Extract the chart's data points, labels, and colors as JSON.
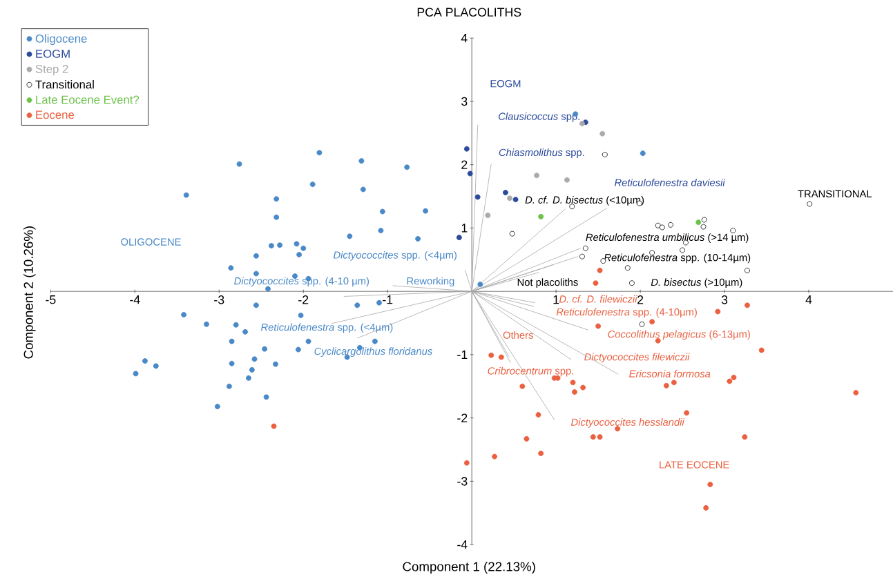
{
  "chart_data": {
    "type": "scatter",
    "title": "PCA PLACOLITHS",
    "xlabel": "Component 1 (22.13%)",
    "ylabel": "Component 2 (10.26%)",
    "xlim": [
      -5,
      5
    ],
    "ylim": [
      -4,
      4
    ],
    "xticks": [
      -5,
      -4,
      -3,
      -2,
      -1,
      1,
      2,
      3,
      4
    ],
    "yticks": [
      -4,
      -3,
      -2,
      -1,
      1,
      2,
      3,
      4
    ],
    "grid": false,
    "legend": "top left",
    "marker": "circle",
    "series": [
      {
        "name": "Oligocene",
        "color": "#4a89c8",
        "x": [
          -3.39,
          -2.76,
          -1.81,
          -1.31,
          -0.77,
          -2.32,
          -1.89,
          -1.29,
          -2.32,
          -1.06,
          -0.55,
          -1.45,
          -1.08,
          -0.64,
          -2.38,
          -2.28,
          -2.08,
          -2.0,
          -2.05,
          -2.56,
          -2.86,
          -2.56,
          -2.1,
          -1.94,
          -2.42,
          0.1,
          -2.56,
          -1.36,
          -1.1,
          -3.42,
          -2.03,
          -3.15,
          -2.8,
          -2.69,
          -2.85,
          -1.94,
          -1.15,
          -2.46,
          -2.06,
          -1.33,
          -1.48,
          -2.58,
          -3.88,
          -3.75,
          -2.85,
          -2.33,
          -2.61,
          -3.99,
          -2.65,
          -2.88,
          -2.44,
          -3.02,
          1.23,
          2.03
        ],
        "values": [
          1.52,
          2.01,
          2.19,
          2.06,
          1.96,
          1.46,
          1.69,
          1.61,
          1.17,
          1.26,
          1.27,
          0.87,
          0.96,
          0.83,
          0.72,
          0.73,
          0.75,
          0.68,
          0.58,
          0.56,
          0.37,
          0.28,
          0.24,
          0.2,
          0.04,
          0.11,
          -0.22,
          -0.22,
          -0.18,
          -0.37,
          -0.38,
          -0.52,
          -0.53,
          -0.64,
          -0.79,
          -0.79,
          -0.79,
          -0.91,
          -0.92,
          -0.89,
          -1.04,
          -1.07,
          -1.1,
          -1.18,
          -1.14,
          -1.15,
          -1.24,
          -1.3,
          -1.37,
          -1.5,
          -1.67,
          -1.82,
          2.8,
          2.18
        ]
      },
      {
        "name": "EOGM",
        "color": "#2b4a9b",
        "x": [
          -0.06,
          -0.02,
          0.07,
          0.4,
          0.52,
          1.35,
          -0.15
        ],
        "values": [
          2.25,
          1.86,
          1.49,
          1.56,
          1.45,
          2.67,
          0.85
        ]
      },
      {
        "name": "Step 2",
        "color": "#aaaaaa",
        "x": [
          1.31,
          1.55,
          0.77,
          1.13,
          0.45,
          0.19
        ],
        "values": [
          2.65,
          2.49,
          1.83,
          1.76,
          1.47,
          1.2
        ]
      },
      {
        "name": "Transitional",
        "color": "#000000",
        "x": [
          1.58,
          0.48,
          1.19,
          1.99,
          4.01,
          2.21,
          2.26,
          2.36,
          2.75,
          3.1,
          2.54,
          1.35,
          1.31,
          1.56,
          2.14,
          2.5,
          1.85,
          3.27,
          1.9,
          2.76,
          2.02
        ],
        "values": [
          2.16,
          0.91,
          1.34,
          1.39,
          1.38,
          1.04,
          1.01,
          1.05,
          1.02,
          0.96,
          0.77,
          0.68,
          0.55,
          0.48,
          0.61,
          0.65,
          0.37,
          0.33,
          0.13,
          1.13,
          -0.52
        ]
      },
      {
        "name": "Late Eocene Event?",
        "color": "#6cc24a",
        "x": [
          0.82,
          2.69
        ],
        "values": [
          1.18,
          1.09
        ]
      },
      {
        "name": "Eocene",
        "color": "#ea6040",
        "x": [
          1.52,
          1.47,
          3.27,
          2.92,
          2.14,
          1.5,
          2.21,
          3.44,
          0.23,
          0.35,
          0.98,
          1.02,
          1.2,
          0.6,
          1.32,
          1.22,
          2.31,
          2.4,
          3.06,
          3.11,
          4.56,
          0.79,
          2.55,
          1.73,
          1.44,
          1.52,
          0.65,
          3.24,
          0.82,
          0.27,
          -0.06,
          2.83,
          2.78,
          -2.35
        ],
        "values": [
          0.33,
          0.13,
          -0.22,
          -0.32,
          -0.48,
          -0.55,
          -0.78,
          -0.93,
          -1.01,
          -1.04,
          -1.37,
          -1.37,
          -1.44,
          -1.5,
          -1.52,
          -1.59,
          -1.49,
          -1.44,
          -1.42,
          -1.36,
          -1.6,
          -1.95,
          -1.92,
          -2.17,
          -2.3,
          -2.3,
          -2.33,
          -2.3,
          -2.56,
          -2.61,
          -2.71,
          -3.05,
          -3.42,
          -2.13
        ]
      },
      {
        "type": "line",
        "color": "#a6a6a6",
        "marker": "none",
        "x": [
          0,
          0.07,
          null,
          0,
          0.23,
          null,
          0,
          1.6,
          null,
          0,
          1.11,
          null,
          0,
          1.29,
          null,
          0,
          1.26,
          null,
          0,
          0.97,
          null,
          0,
          0.8,
          null,
          0,
          -0.08,
          null,
          0,
          -0.94,
          null,
          0,
          -1.52,
          null,
          0,
          -1.67,
          null,
          0,
          -1.36,
          null,
          0,
          0.74,
          null,
          0,
          0.75,
          null,
          0,
          1.38,
          null,
          0,
          1.18,
          null,
          0,
          1.74,
          null,
          0,
          0.44,
          null,
          0,
          0.46,
          null,
          0,
          0.98
        ],
        "values": [
          0,
          2.63,
          null,
          0,
          2.01,
          null,
          0,
          1.31,
          null,
          0,
          1.3,
          null,
          0,
          0.68,
          null,
          0,
          0.55,
          null,
          0,
          0.42,
          null,
          0,
          0.3,
          null,
          0,
          0.34,
          null,
          0,
          0.09,
          null,
          0,
          -0.08,
          null,
          0,
          -0.51,
          null,
          0,
          -0.74,
          null,
          0,
          -0.24,
          null,
          0,
          -0.18,
          null,
          0,
          -0.61,
          null,
          0,
          -1.08,
          null,
          0,
          -1.31,
          null,
          0,
          -1.03,
          null,
          0,
          -1.13,
          null,
          0,
          -2.03
        ]
      }
    ],
    "annotations": [
      "*Clausicoccus* spp.",
      "*Chiasmolithus* spp.",
      "*Reticulofenestra daviesii*",
      "*D. cf. D. bisectus* (<10µm)",
      "*Reticulofenestra umbilicus* (>14 µm)",
      "*Reticulofenestra* spp. (10-14µm)",
      "Not placoliths",
      "*D. bisectus* (>10µm)",
      "*Dictyococcites* spp. (<4µm)",
      "Reworking",
      "*Dictyococcites* spp. (4-10 µm)",
      "*Reticulofenestra* spp. (<4µm)",
      "*Cyclicargolithus floridanus*",
      "*D. cf. D. filewiczii*",
      "*Reticulofenestra* spp. (4-10µm)",
      "*Coccolithus pelagicus* (6-13µm)",
      "*Dictyococcites filewiczii*",
      "*Ericsonia formosa*",
      "Others",
      "*Cribrocentrum* spp.",
      "*Dictyococcites hesslandii*",
      "EOGM",
      "OLIGOCENE",
      "TRANSITIONAL",
      "LATE EOCENE"
    ]
  }
}
